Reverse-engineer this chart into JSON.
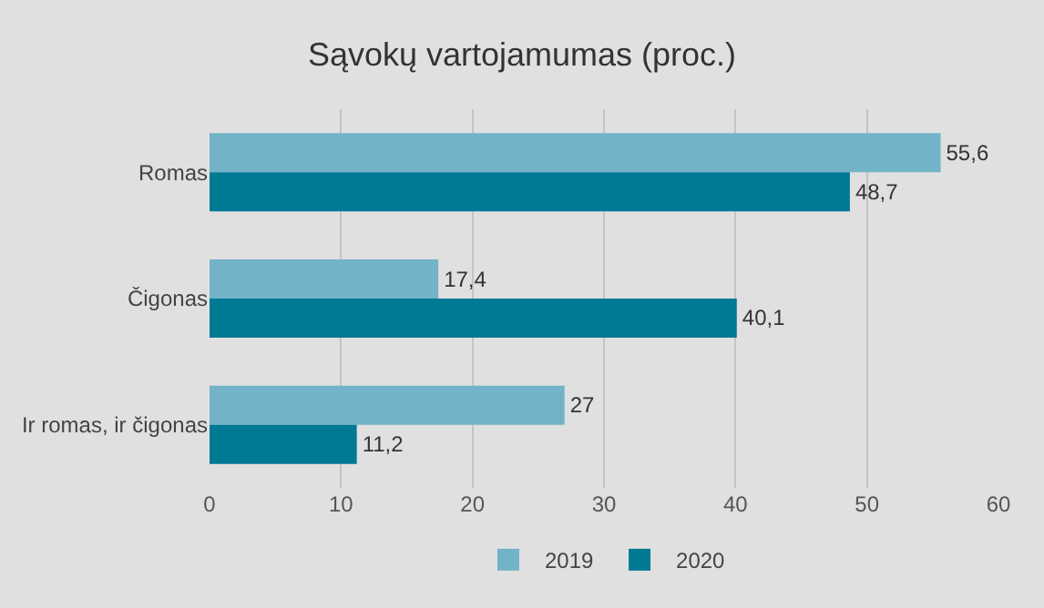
{
  "chart_data": {
    "type": "bar",
    "orientation": "horizontal",
    "title": "Sąvokų vartojamumas (proc.)",
    "categories": [
      "Romas",
      "Čigonas",
      "Ir romas, ir čigonas"
    ],
    "series": [
      {
        "name": "2019",
        "color": "#72b3c8",
        "values": [
          55.6,
          17.4,
          27
        ],
        "value_labels": [
          "55,6",
          "17,4",
          "27"
        ]
      },
      {
        "name": "2020",
        "color": "#007a94",
        "values": [
          48.7,
          40.1,
          11.2
        ],
        "value_labels": [
          "48,7",
          "40,1",
          "11,2"
        ]
      }
    ],
    "xlim": [
      0,
      60
    ],
    "xticks": [
      0,
      10,
      20,
      30,
      40,
      50,
      60
    ],
    "grid": "x",
    "legend": "bottom"
  }
}
